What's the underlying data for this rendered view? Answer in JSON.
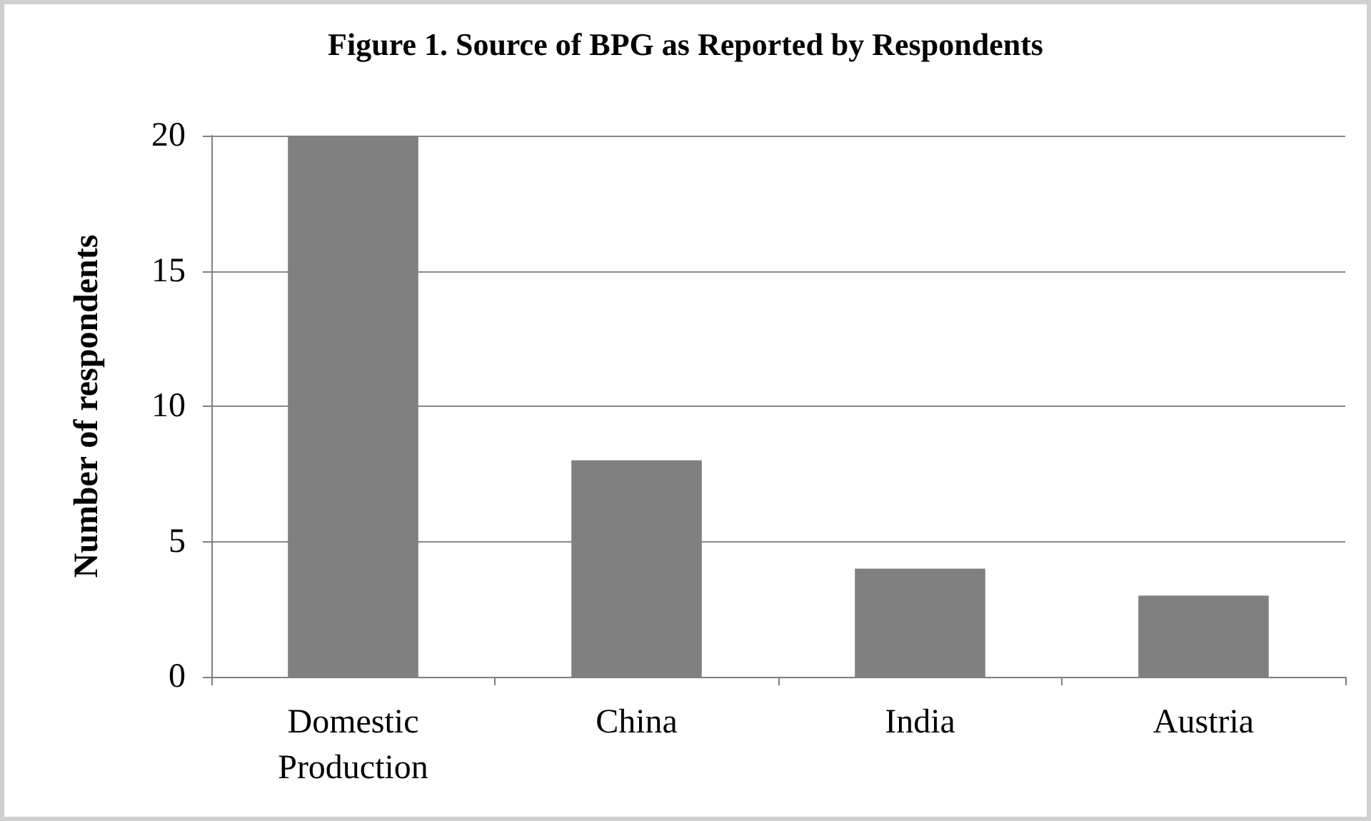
{
  "chart_data": {
    "type": "bar",
    "title": "Figure 1. Source of BPG as Reported by Respondents",
    "ylabel": "Number of respondents",
    "categories": [
      "Domestic\nProduction",
      "China",
      "India",
      "Austria"
    ],
    "values": [
      20,
      8,
      4,
      3
    ],
    "color": "#808080",
    "ylim": [
      0,
      20
    ],
    "yticks": [
      0,
      5,
      10,
      15,
      20
    ],
    "grid": "y"
  }
}
